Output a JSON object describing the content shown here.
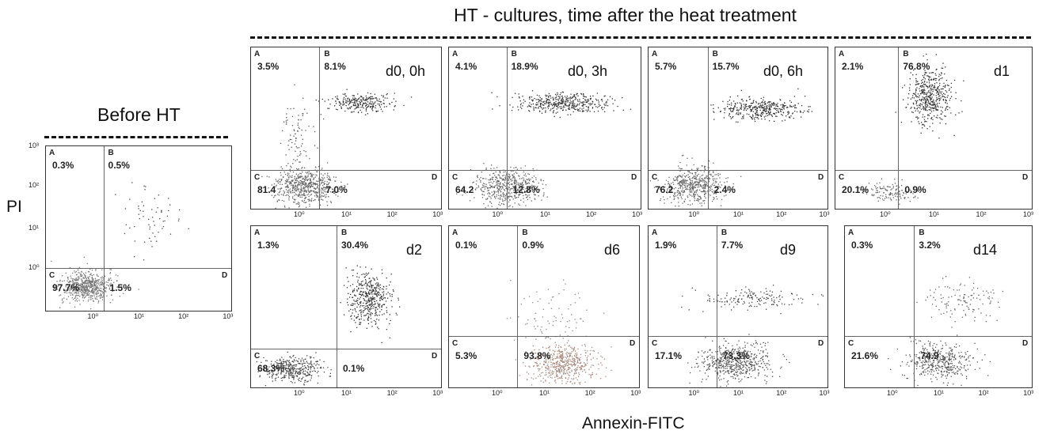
{
  "header_before": "Before HT",
  "header_ht": "HT - cultures, time after the heat treatment",
  "y_axis_label": "PI",
  "x_axis_label": "Annexin-FITC",
  "quadrant_letters": [
    "A",
    "B",
    "C",
    "D"
  ],
  "x_ticks": [
    "10⁰",
    "10¹",
    "10²",
    "10³"
  ],
  "y_ticks": [
    "10³",
    "10²",
    "10¹",
    "10⁰"
  ],
  "chart_data": [
    {
      "type": "scatter",
      "tag": "",
      "quadrants": {
        "A": "0.3%",
        "B": "0.5%",
        "C": "97.7%",
        "D": "1.5%"
      }
    },
    {
      "type": "scatter",
      "tag": "d0, 0h",
      "quadrants": {
        "A": "3.5%",
        "B": "8.1%",
        "C": "81.4",
        "D": "7.0%"
      }
    },
    {
      "type": "scatter",
      "tag": "d0, 3h",
      "quadrants": {
        "A": "4.1%",
        "B": "18.9%",
        "C": "64.2",
        "D": "12.8%"
      }
    },
    {
      "type": "scatter",
      "tag": "d0, 6h",
      "quadrants": {
        "A": "5.7%",
        "B": "15.7%",
        "C": "76.2",
        "D": "2.4%"
      }
    },
    {
      "type": "scatter",
      "tag": "d1",
      "quadrants": {
        "A": "2.1%",
        "B": "76.8%",
        "C": "20.1%",
        "D": "0.9%"
      }
    },
    {
      "type": "scatter",
      "tag": "d2",
      "quadrants": {
        "A": "1.3%",
        "B": "30.4%",
        "C": "68.3%",
        "D": "0.1%"
      }
    },
    {
      "type": "scatter",
      "tag": "d6",
      "quadrants": {
        "A": "0.1%",
        "B": "0.9%",
        "C": "5.3%",
        "D": "93.8%"
      }
    },
    {
      "type": "scatter",
      "tag": "d9",
      "quadrants": {
        "A": "1.9%",
        "B": "7.7%",
        "C": "17.1%",
        "D": "73.3%"
      }
    },
    {
      "type": "scatter",
      "tag": "d14",
      "quadrants": {
        "A": "0.3%",
        "B": "3.2%",
        "C": "21.6%",
        "D": "74.9"
      }
    }
  ]
}
